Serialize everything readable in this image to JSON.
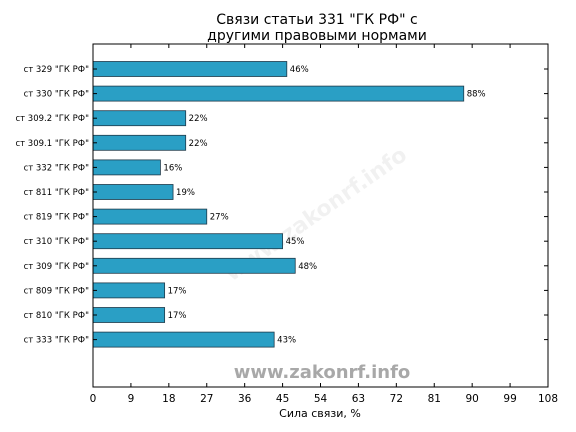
{
  "watermark": "www.zakonrf.info",
  "chart_data": {
    "type": "bar",
    "orientation": "horizontal",
    "title_lines": [
      "Связи статьи 331 \"ГК РФ\" с",
      "другими правовыми нормами"
    ],
    "xlabel": "Сила связи, %",
    "ylabel": "",
    "xlim": [
      0,
      108
    ],
    "xticks": [
      0,
      9,
      18,
      27,
      36,
      45,
      54,
      63,
      72,
      81,
      90,
      99,
      108
    ],
    "categories": [
      "ст 329 \"ГК РФ\"",
      "ст 330 \"ГК РФ\"",
      "ст 309.2 \"ГК РФ\"",
      "ст 309.1 \"ГК РФ\"",
      "ст 332 \"ГК РФ\"",
      "ст 811 \"ГК РФ\"",
      "ст 819 \"ГК РФ\"",
      "ст 310 \"ГК РФ\"",
      "ст 309 \"ГК РФ\"",
      "ст 809 \"ГК РФ\"",
      "ст 810 \"ГК РФ\"",
      "ст 333 \"ГК РФ\""
    ],
    "values": [
      46,
      88,
      22,
      22,
      16,
      19,
      27,
      45,
      48,
      17,
      17,
      43
    ],
    "value_labels": [
      "46%",
      "88%",
      "22%",
      "22%",
      "16%",
      "19%",
      "27%",
      "45%",
      "48%",
      "17%",
      "17%",
      "43%"
    ],
    "bar_color": "#2a9fc5",
    "grid": false,
    "legend": "none"
  }
}
